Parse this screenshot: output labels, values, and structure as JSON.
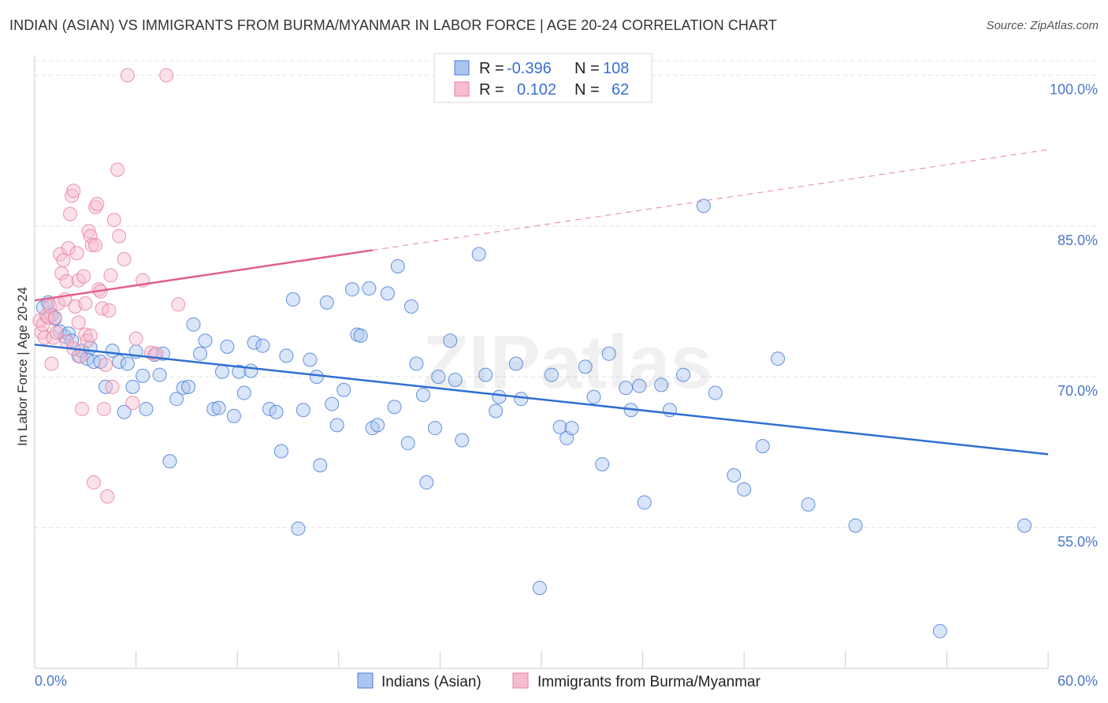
{
  "title": "INDIAN (ASIAN) VS IMMIGRANTS FROM BURMA/MYANMAR IN LABOR FORCE | AGE 20-24 CORRELATION CHART",
  "source": "Source: ZipAtlas.com",
  "watermark": "ZIPatlas",
  "colors": {
    "blue": "#4a7fd6",
    "blue_fill": "#aac6ef",
    "blue_line": "#2e6fd0",
    "pink": "#e8819f",
    "pink_fill": "#f6bcd0",
    "pink_line": "#e0608c",
    "tick_text": "#4a77c9",
    "grid": "#e4e4e4"
  },
  "legend": {
    "r_label": "R =",
    "n_label": "N =",
    "rows": [
      {
        "r": "-0.396",
        "n": "108",
        "series": "blue"
      },
      {
        "r": "0.102",
        "n": "62",
        "series": "pink"
      }
    ]
  },
  "bottom_legend": [
    "Indians (Asian)",
    "Immigrants from Burma/Myanmar"
  ],
  "chart_data": {
    "type": "scatter",
    "title": "INDIAN (ASIAN) VS IMMIGRANTS FROM BURMA/MYANMAR IN LABOR FORCE | AGE 20-24 CORRELATION CHART",
    "xlabel": "",
    "ylabel": "In Labor Force | Age 20-24",
    "xlim": [
      0,
      60
    ],
    "ylim": [
      41,
      102
    ],
    "x_ticks": [
      "0.0%",
      "60.0%"
    ],
    "y_ticks": [
      {
        "value": 100,
        "label": "100.0%"
      },
      {
        "value": 85,
        "label": "85.0%"
      },
      {
        "value": 70,
        "label": "70.0%"
      },
      {
        "value": 55,
        "label": "55.0%"
      }
    ],
    "grid": true,
    "legend_position": "top-center",
    "series": [
      {
        "name": "Indians (Asian)",
        "color": "#4a7fd6",
        "trend": {
          "x1": 0,
          "y1": 73.2,
          "x2": 60,
          "y2": 62.3,
          "dashed_from": null
        },
        "points": [
          [
            0.5,
            76.9
          ],
          [
            0.8,
            77.4
          ],
          [
            1.0,
            76.1
          ],
          [
            1.2,
            75.8
          ],
          [
            1.5,
            74.5
          ],
          [
            1.8,
            74.0
          ],
          [
            2.0,
            74.3
          ],
          [
            2.2,
            73.6
          ],
          [
            2.6,
            72.1
          ],
          [
            2.8,
            72.6
          ],
          [
            3.1,
            71.8
          ],
          [
            3.3,
            72.9
          ],
          [
            3.5,
            71.5
          ],
          [
            3.9,
            71.5
          ],
          [
            4.2,
            69.0
          ],
          [
            4.6,
            72.6
          ],
          [
            5.0,
            71.5
          ],
          [
            5.3,
            66.5
          ],
          [
            5.5,
            71.3
          ],
          [
            5.8,
            69.0
          ],
          [
            6.0,
            72.5
          ],
          [
            6.4,
            70.1
          ],
          [
            6.6,
            66.8
          ],
          [
            7.1,
            72.2
          ],
          [
            7.4,
            70.2
          ],
          [
            7.6,
            72.3
          ],
          [
            8.0,
            61.6
          ],
          [
            8.4,
            67.8
          ],
          [
            8.8,
            68.9
          ],
          [
            9.1,
            69.0
          ],
          [
            9.4,
            75.2
          ],
          [
            9.8,
            72.3
          ],
          [
            10.1,
            73.6
          ],
          [
            10.6,
            66.8
          ],
          [
            10.9,
            66.9
          ],
          [
            11.1,
            70.5
          ],
          [
            11.4,
            73.0
          ],
          [
            11.8,
            66.1
          ],
          [
            12.1,
            70.5
          ],
          [
            12.4,
            68.4
          ],
          [
            12.8,
            70.6
          ],
          [
            13.0,
            73.4
          ],
          [
            13.5,
            73.1
          ],
          [
            13.9,
            66.8
          ],
          [
            14.3,
            66.5
          ],
          [
            14.6,
            62.6
          ],
          [
            14.9,
            72.1
          ],
          [
            15.3,
            77.7
          ],
          [
            15.6,
            54.9
          ],
          [
            15.9,
            66.7
          ],
          [
            16.3,
            71.7
          ],
          [
            16.7,
            70.0
          ],
          [
            16.9,
            61.2
          ],
          [
            17.3,
            77.4
          ],
          [
            17.6,
            67.3
          ],
          [
            17.9,
            65.2
          ],
          [
            18.3,
            68.7
          ],
          [
            18.8,
            78.7
          ],
          [
            19.1,
            74.2
          ],
          [
            19.3,
            74.1
          ],
          [
            19.8,
            78.8
          ],
          [
            20.0,
            64.9
          ],
          [
            20.3,
            65.2
          ],
          [
            20.9,
            78.3
          ],
          [
            21.3,
            67.0
          ],
          [
            21.5,
            81.0
          ],
          [
            22.1,
            63.4
          ],
          [
            22.3,
            77.0
          ],
          [
            22.6,
            71.3
          ],
          [
            23.0,
            68.2
          ],
          [
            23.2,
            59.5
          ],
          [
            23.7,
            64.9
          ],
          [
            23.9,
            70.0
          ],
          [
            24.6,
            73.6
          ],
          [
            24.9,
            69.7
          ],
          [
            25.3,
            63.7
          ],
          [
            26.3,
            82.2
          ],
          [
            26.7,
            70.2
          ],
          [
            27.3,
            66.6
          ],
          [
            27.5,
            68.0
          ],
          [
            28.5,
            71.3
          ],
          [
            28.8,
            67.8
          ],
          [
            29.9,
            49.0
          ],
          [
            30.6,
            70.2
          ],
          [
            31.1,
            65.0
          ],
          [
            31.5,
            63.9
          ],
          [
            31.8,
            64.9
          ],
          [
            32.6,
            71.0
          ],
          [
            33.1,
            68.0
          ],
          [
            33.6,
            61.3
          ],
          [
            34.0,
            72.3
          ],
          [
            35.0,
            68.9
          ],
          [
            35.3,
            66.7
          ],
          [
            35.8,
            69.1
          ],
          [
            36.1,
            57.5
          ],
          [
            37.1,
            69.2
          ],
          [
            37.6,
            66.7
          ],
          [
            38.4,
            70.2
          ],
          [
            39.6,
            87.0
          ],
          [
            40.3,
            68.4
          ],
          [
            41.4,
            60.2
          ],
          [
            42.0,
            58.8
          ],
          [
            43.1,
            63.1
          ],
          [
            44.0,
            71.8
          ],
          [
            45.8,
            57.3
          ],
          [
            48.6,
            55.2
          ],
          [
            53.6,
            44.7
          ],
          [
            58.6,
            55.2
          ]
        ]
      },
      {
        "name": "Immigrants from Burma/Myanmar",
        "color": "#e8819f",
        "trend": {
          "x1": 0,
          "y1": 77.6,
          "x2": 60,
          "y2": 92.6,
          "dashed_from": 20
        },
        "points": [
          [
            0.3,
            75.6
          ],
          [
            0.4,
            74.4
          ],
          [
            0.5,
            75.2
          ],
          [
            0.6,
            73.9
          ],
          [
            0.7,
            76.1
          ],
          [
            0.8,
            75.9
          ],
          [
            0.9,
            77.0
          ],
          [
            1.0,
            71.3
          ],
          [
            1.1,
            73.9
          ],
          [
            1.2,
            75.9
          ],
          [
            1.3,
            74.4
          ],
          [
            1.4,
            77.3
          ],
          [
            1.5,
            82.2
          ],
          [
            1.6,
            80.3
          ],
          [
            1.7,
            81.6
          ],
          [
            1.8,
            77.7
          ],
          [
            1.9,
            79.5
          ],
          [
            2.0,
            82.8
          ],
          [
            2.1,
            86.2
          ],
          [
            2.2,
            88.0
          ],
          [
            2.3,
            88.5
          ],
          [
            2.4,
            77.0
          ],
          [
            2.5,
            82.3
          ],
          [
            2.6,
            79.6
          ],
          [
            2.7,
            72.0
          ],
          [
            2.8,
            66.8
          ],
          [
            2.9,
            80.0
          ],
          [
            3.0,
            74.2
          ],
          [
            3.1,
            73.6
          ],
          [
            3.2,
            84.5
          ],
          [
            3.3,
            84.0
          ],
          [
            3.4,
            83.1
          ],
          [
            3.5,
            59.5
          ],
          [
            3.6,
            86.9
          ],
          [
            3.7,
            87.2
          ],
          [
            3.8,
            78.7
          ],
          [
            3.9,
            78.5
          ],
          [
            4.0,
            76.8
          ],
          [
            4.1,
            66.8
          ],
          [
            4.2,
            71.2
          ],
          [
            4.3,
            58.1
          ],
          [
            4.4,
            76.6
          ],
          [
            4.5,
            80.1
          ],
          [
            4.6,
            69.0
          ],
          [
            4.7,
            85.6
          ],
          [
            4.9,
            90.6
          ],
          [
            5.0,
            84.0
          ],
          [
            5.3,
            81.7
          ],
          [
            5.5,
            100.0
          ],
          [
            5.8,
            67.4
          ],
          [
            6.0,
            73.8
          ],
          [
            6.4,
            79.6
          ],
          [
            6.9,
            72.4
          ],
          [
            7.2,
            72.3
          ],
          [
            7.8,
            100.0
          ],
          [
            8.5,
            77.2
          ],
          [
            2.6,
            75.4
          ],
          [
            3.0,
            77.3
          ],
          [
            1.9,
            73.5
          ],
          [
            2.3,
            72.8
          ],
          [
            3.3,
            74.1
          ],
          [
            3.6,
            83.1
          ]
        ]
      }
    ]
  }
}
